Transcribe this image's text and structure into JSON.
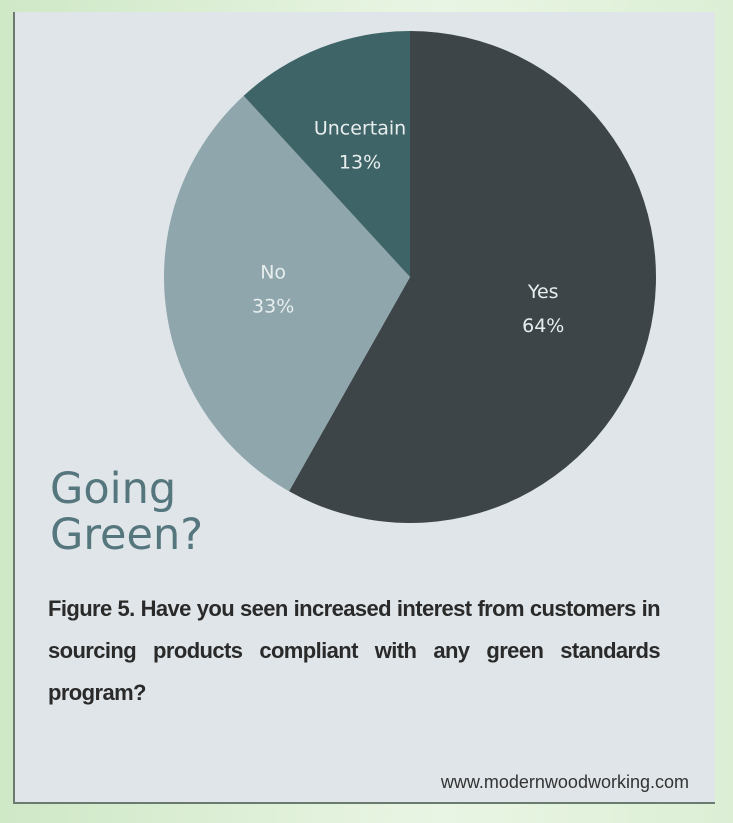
{
  "chart_data": {
    "type": "pie",
    "categories": [
      "Yes",
      "No",
      "Uncertain"
    ],
    "values": [
      64,
      33,
      13
    ],
    "value_labels": [
      "64%",
      "33%",
      "13%"
    ],
    "colors": [
      "#3d4548",
      "#8fa6ac",
      "#3f6467"
    ],
    "title_lines": [
      "Going",
      "Green?"
    ],
    "caption": "Figure 5.  Have you seen increased interest from customers in sourcing products compliant with any green standards program?",
    "source": "www.modernwoodworking.com"
  }
}
